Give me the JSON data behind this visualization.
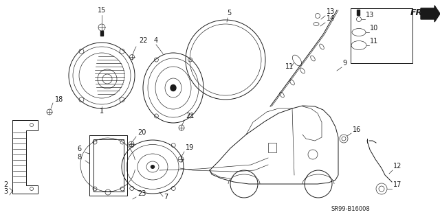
{
  "bg_color": "#ffffff",
  "part_number": "SR99-B16008",
  "figsize": [
    6.4,
    3.19
  ],
  "dpi": 100
}
